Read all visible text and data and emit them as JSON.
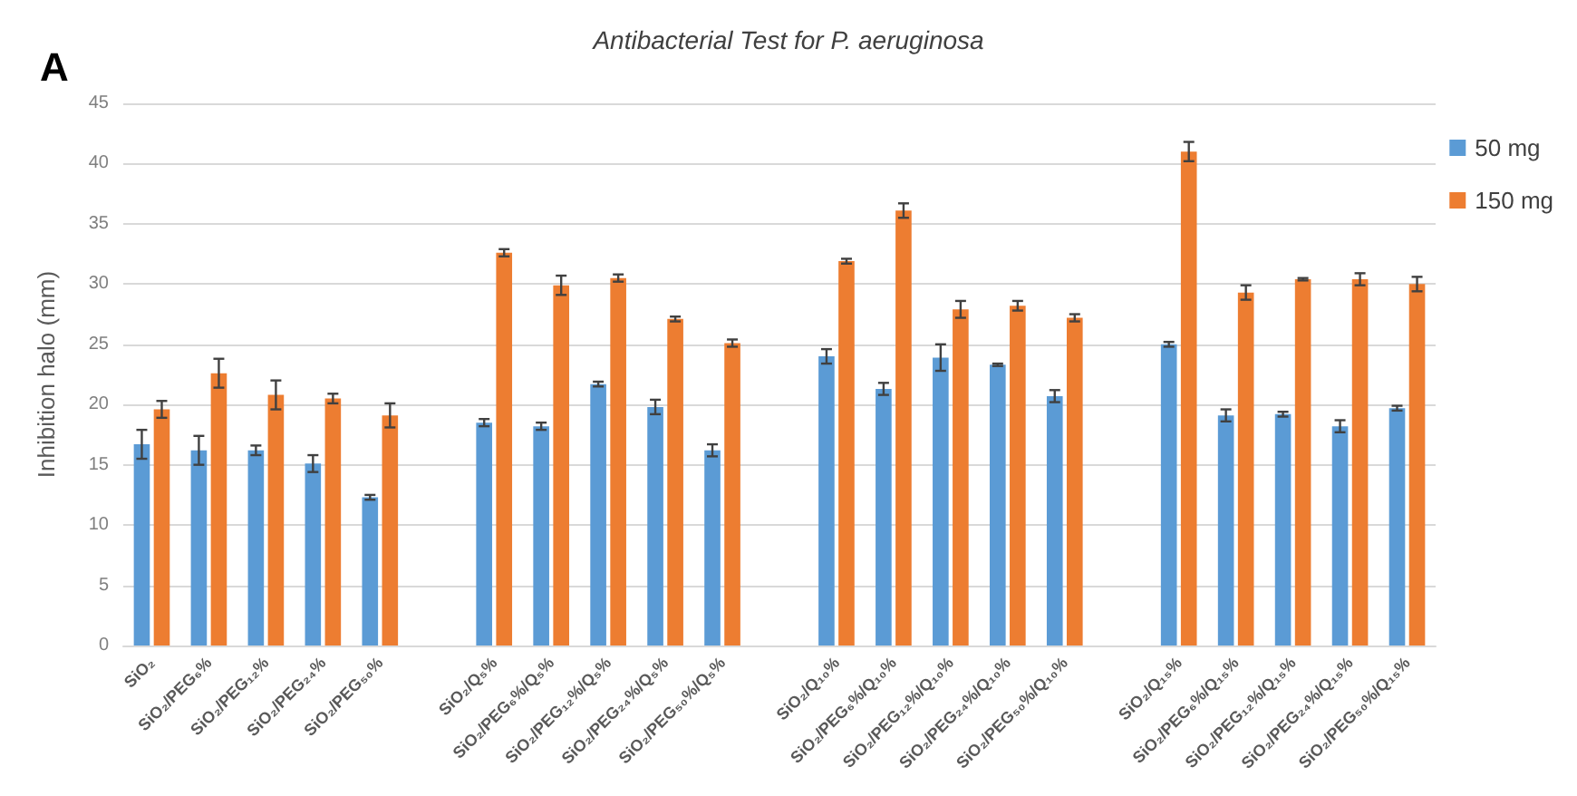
{
  "chart_data": {
    "type": "bar",
    "title": "Antibacterial Test for P. aeruginosa",
    "ylabel": "Inhibition halo (mm)",
    "annotations": [
      "A"
    ],
    "categories": [
      "SiO₂",
      "SiO₂/PEG₆%",
      "SiO₂/PEG₁₂%",
      "SiO₂/PEG₂₄%",
      "SiO₂/PEG₅₀%",
      null,
      "SiO₂/Q₅%",
      "SiO₂/PEG₆%/Q₅%",
      "SiO₂/PEG₁₂%/Q₅%",
      "SiO₂/PEG₂₄%/Q₅%",
      "SiO₂/PEG₅₀%/Q₅%",
      null,
      "SiO₂/Q₁₀%",
      "SiO₂/PEG₆%/Q₁₀%",
      "SiO₂/PEG₁₂%/Q₁₀%",
      "SiO₂/PEG₂₄%/Q₁₀%",
      "SiO₂/PEG₅₀%/Q₁₀%",
      null,
      "SiO₂/Q₁₅%",
      "SiO₂/PEG₆%/Q₁₅%",
      "SiO₂/PEG₁₂%/Q₁₅%",
      "SiO₂/PEG₂₄%/Q₁₅%",
      "SiO₂/PEG₅₀%/Q₁₅%"
    ],
    "series": [
      {
        "name": "50 mg",
        "color": "#5b9bd5",
        "values": [
          16.7,
          16.2,
          16.2,
          15.1,
          12.3,
          null,
          18.5,
          18.2,
          21.7,
          19.8,
          16.2,
          null,
          24.0,
          21.3,
          23.9,
          23.3,
          20.7,
          null,
          25.0,
          19.1,
          19.2,
          18.2,
          19.7
        ],
        "errors": [
          1.2,
          1.2,
          0.4,
          0.7,
          0.2,
          null,
          0.3,
          0.3,
          0.2,
          0.6,
          0.5,
          null,
          0.6,
          0.5,
          1.1,
          0.1,
          0.5,
          null,
          0.2,
          0.5,
          0.2,
          0.5,
          0.2
        ]
      },
      {
        "name": "150 mg",
        "color": "#ed7d31",
        "values": [
          19.6,
          22.6,
          20.8,
          20.5,
          19.1,
          null,
          32.6,
          29.9,
          30.5,
          27.1,
          25.1,
          null,
          31.9,
          36.1,
          27.9,
          28.2,
          27.2,
          null,
          41.0,
          29.3,
          30.4,
          30.4,
          30.0
        ],
        "errors": [
          0.7,
          1.2,
          1.2,
          0.4,
          1.0,
          null,
          0.3,
          0.8,
          0.3,
          0.2,
          0.3,
          null,
          0.2,
          0.6,
          0.7,
          0.4,
          0.3,
          null,
          0.8,
          0.6,
          0.1,
          0.5,
          0.6
        ]
      }
    ],
    "ylim": [
      0,
      45
    ],
    "yticks": [
      0,
      5,
      10,
      15,
      20,
      25,
      30,
      35,
      40,
      45
    ],
    "grid": "y",
    "legend": "top right"
  }
}
